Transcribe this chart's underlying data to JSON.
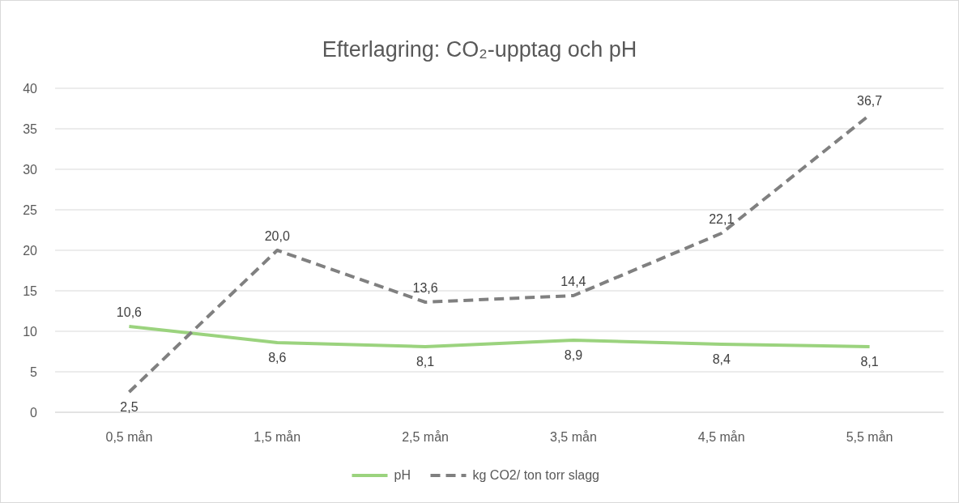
{
  "chart_data": {
    "type": "line",
    "title": "Efterlagring: CO₂-upptag och pH",
    "categories": [
      "0,5 mån",
      "1,5 mån",
      "2,5 mån",
      "3,5 mån",
      "4,5 mån",
      "5,5 mån"
    ],
    "series": [
      {
        "name": "pH",
        "color": "#9bd37e",
        "line_style": "solid",
        "values": [
          10.6,
          8.6,
          8.1,
          8.9,
          8.4,
          8.1
        ],
        "value_labels": [
          "10,6",
          "8,6",
          "8,1",
          "8,9",
          "8,4",
          "8,1"
        ]
      },
      {
        "name": "kg CO2/ ton torr slagg",
        "color": "#808080",
        "line_style": "dashed",
        "values": [
          2.5,
          20.0,
          13.6,
          14.4,
          22.1,
          36.7
        ],
        "value_labels": [
          "2,5",
          "20,0",
          "13,6",
          "14,4",
          "22,1",
          "36,7"
        ]
      }
    ],
    "ylim": [
      0,
      40
    ],
    "yticks": [
      0,
      5,
      10,
      15,
      20,
      25,
      30,
      35,
      40
    ],
    "grid": "y",
    "legend": "bottom",
    "marker": "none"
  }
}
